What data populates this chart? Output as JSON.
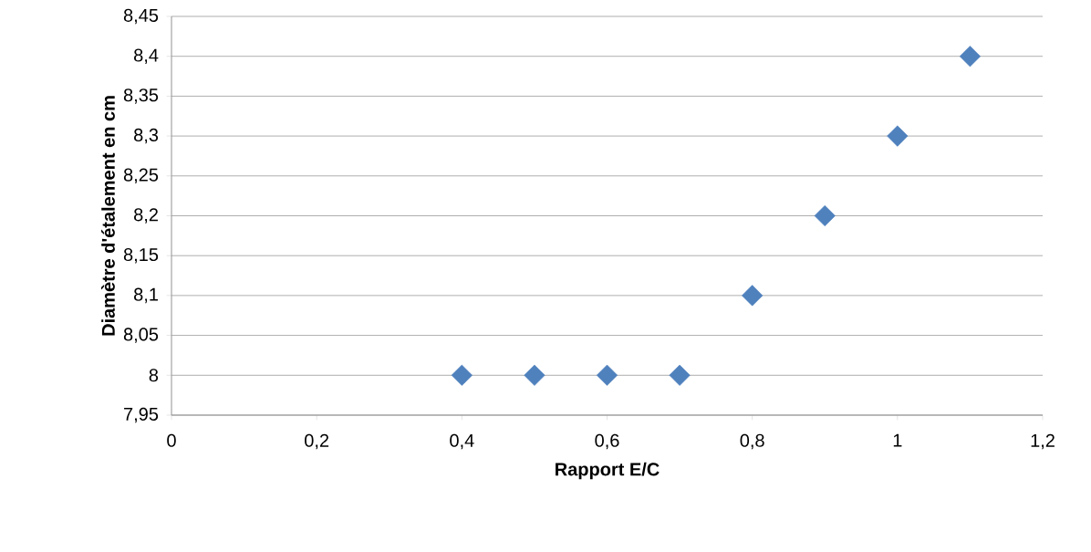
{
  "chart_data": {
    "type": "scatter",
    "xlabel": "Rapport  E/C",
    "ylabel": "Diamètre d'étalement  en cm",
    "x": [
      0.4,
      0.5,
      0.6,
      0.7,
      0.8,
      0.9,
      1.0,
      1.1
    ],
    "values": [
      8,
      8,
      8,
      8,
      8.1,
      8.2,
      8.3,
      8.4
    ],
    "color": "#4f81bd",
    "marker": "diamond",
    "grid": "y",
    "xlim": [
      0,
      1.2
    ],
    "ylim": [
      7.95,
      8.45
    ],
    "xticks": [
      0,
      {
        "value": 0.2,
        "label": "0,2"
      },
      {
        "value": 0.4,
        "label": "0,4"
      },
      {
        "value": 0.6,
        "label": "0,6"
      },
      {
        "value": 0.8,
        "label": "0,8"
      },
      1,
      {
        "value": 1.2,
        "label": "1,2"
      }
    ],
    "yticks": [
      {
        "value": 7.95,
        "label": "7,95"
      },
      8,
      {
        "value": 8.05,
        "label": "8,05"
      },
      {
        "value": 8.1,
        "label": "8,1"
      },
      {
        "value": 8.15,
        "label": "8,15"
      },
      {
        "value": 8.2,
        "label": "8,2"
      },
      {
        "value": 8.25,
        "label": "8,25"
      },
      {
        "value": 8.3,
        "label": "8,3"
      },
      {
        "value": 8.35,
        "label": "8,35"
      },
      {
        "value": 8.4,
        "label": "8,4"
      },
      {
        "value": 8.45,
        "label": "8,45"
      }
    ]
  }
}
